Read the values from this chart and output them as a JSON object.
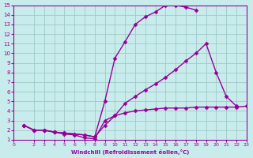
{
  "xlabel": "Windchill (Refroidissement éolien,°C)",
  "background_color": "#c8ecec",
  "grid_color": "#a0c8c8",
  "line_color": "#990099",
  "xlim": [
    0,
    23
  ],
  "ylim": [
    1,
    15
  ],
  "xticks": [
    0,
    2,
    3,
    4,
    5,
    6,
    7,
    8,
    9,
    10,
    11,
    12,
    13,
    14,
    15,
    16,
    17,
    18,
    19,
    20,
    21,
    22,
    23
  ],
  "yticks": [
    1,
    2,
    3,
    4,
    5,
    6,
    7,
    8,
    9,
    10,
    11,
    12,
    13,
    14,
    15
  ],
  "series": [
    {
      "x": [
        1,
        2,
        3,
        4,
        5,
        6,
        7,
        8,
        9,
        10,
        11,
        12,
        13,
        14,
        15,
        16,
        17,
        18
      ],
      "y": [
        2.5,
        2.0,
        2.0,
        1.8,
        1.7,
        1.6,
        1.5,
        1.3,
        5.0,
        9.5,
        11.2,
        13.0,
        13.8,
        14.3,
        15.0,
        15.0,
        14.8,
        14.5
      ],
      "marker": "D",
      "markersize": 2.5,
      "linewidth": 1.0,
      "color": "#990099"
    },
    {
      "x": [
        1,
        2,
        3,
        4,
        5,
        6,
        7,
        8,
        9,
        10,
        11,
        12,
        13,
        14,
        15,
        16,
        17,
        18,
        19,
        20,
        21,
        22
      ],
      "y": [
        2.5,
        2.0,
        2.0,
        1.8,
        1.7,
        1.6,
        1.5,
        1.3,
        2.5,
        3.5,
        4.8,
        5.5,
        6.2,
        6.8,
        7.5,
        8.3,
        9.2,
        10.0,
        11.0,
        8.0,
        5.5,
        4.5
      ],
      "marker": "D",
      "markersize": 2.5,
      "linewidth": 1.0,
      "color": "#990099"
    },
    {
      "x": [
        1,
        2,
        3,
        4,
        5,
        6,
        7,
        8,
        9,
        10,
        11,
        12,
        13,
        14,
        15,
        16,
        17,
        18,
        19,
        20,
        21,
        22,
        23
      ],
      "y": [
        2.5,
        2.0,
        2.0,
        1.8,
        1.6,
        1.5,
        1.2,
        1.1,
        3.0,
        3.5,
        3.8,
        4.0,
        4.1,
        4.2,
        4.3,
        4.3,
        4.3,
        4.4,
        4.4,
        4.4,
        4.4,
        4.4,
        4.5
      ],
      "marker": "D",
      "markersize": 2.5,
      "linewidth": 1.0,
      "color": "#990099"
    }
  ]
}
